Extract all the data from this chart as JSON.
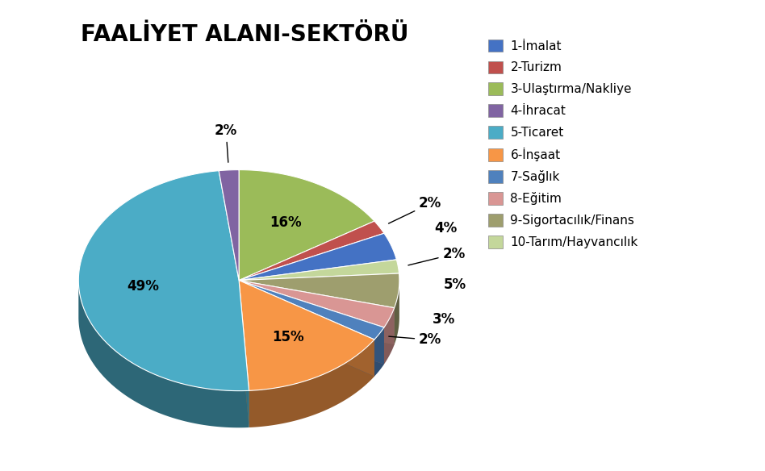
{
  "title": "FAALİYET ALANI-SEKTÖRÜ",
  "labels": [
    "1-İmalat",
    "2-Turizm",
    "3-Ulaştırma/Nakliye",
    "4-İhracat",
    "5-Ticaret",
    "6-İnşaat",
    "7-Sağlık",
    "8-Eğitim",
    "9-Sigortacılık/Finans",
    "10-Tarım/Hayvancılık"
  ],
  "values": [
    4,
    2,
    16,
    2,
    49,
    15,
    2,
    3,
    5,
    2
  ],
  "colors": [
    "#4472C4",
    "#C0504D",
    "#9BBB59",
    "#8064A2",
    "#4BACC6",
    "#F79646",
    "#4F81BD",
    "#D99694",
    "#9E9E6E",
    "#C4D79B"
  ],
  "pie_order": [
    2,
    1,
    0,
    9,
    8,
    7,
    6,
    5,
    4,
    3
  ],
  "title_fontsize": 20,
  "legend_fontsize": 11,
  "label_fontsize": 12,
  "background_color": "#FFFFFF"
}
